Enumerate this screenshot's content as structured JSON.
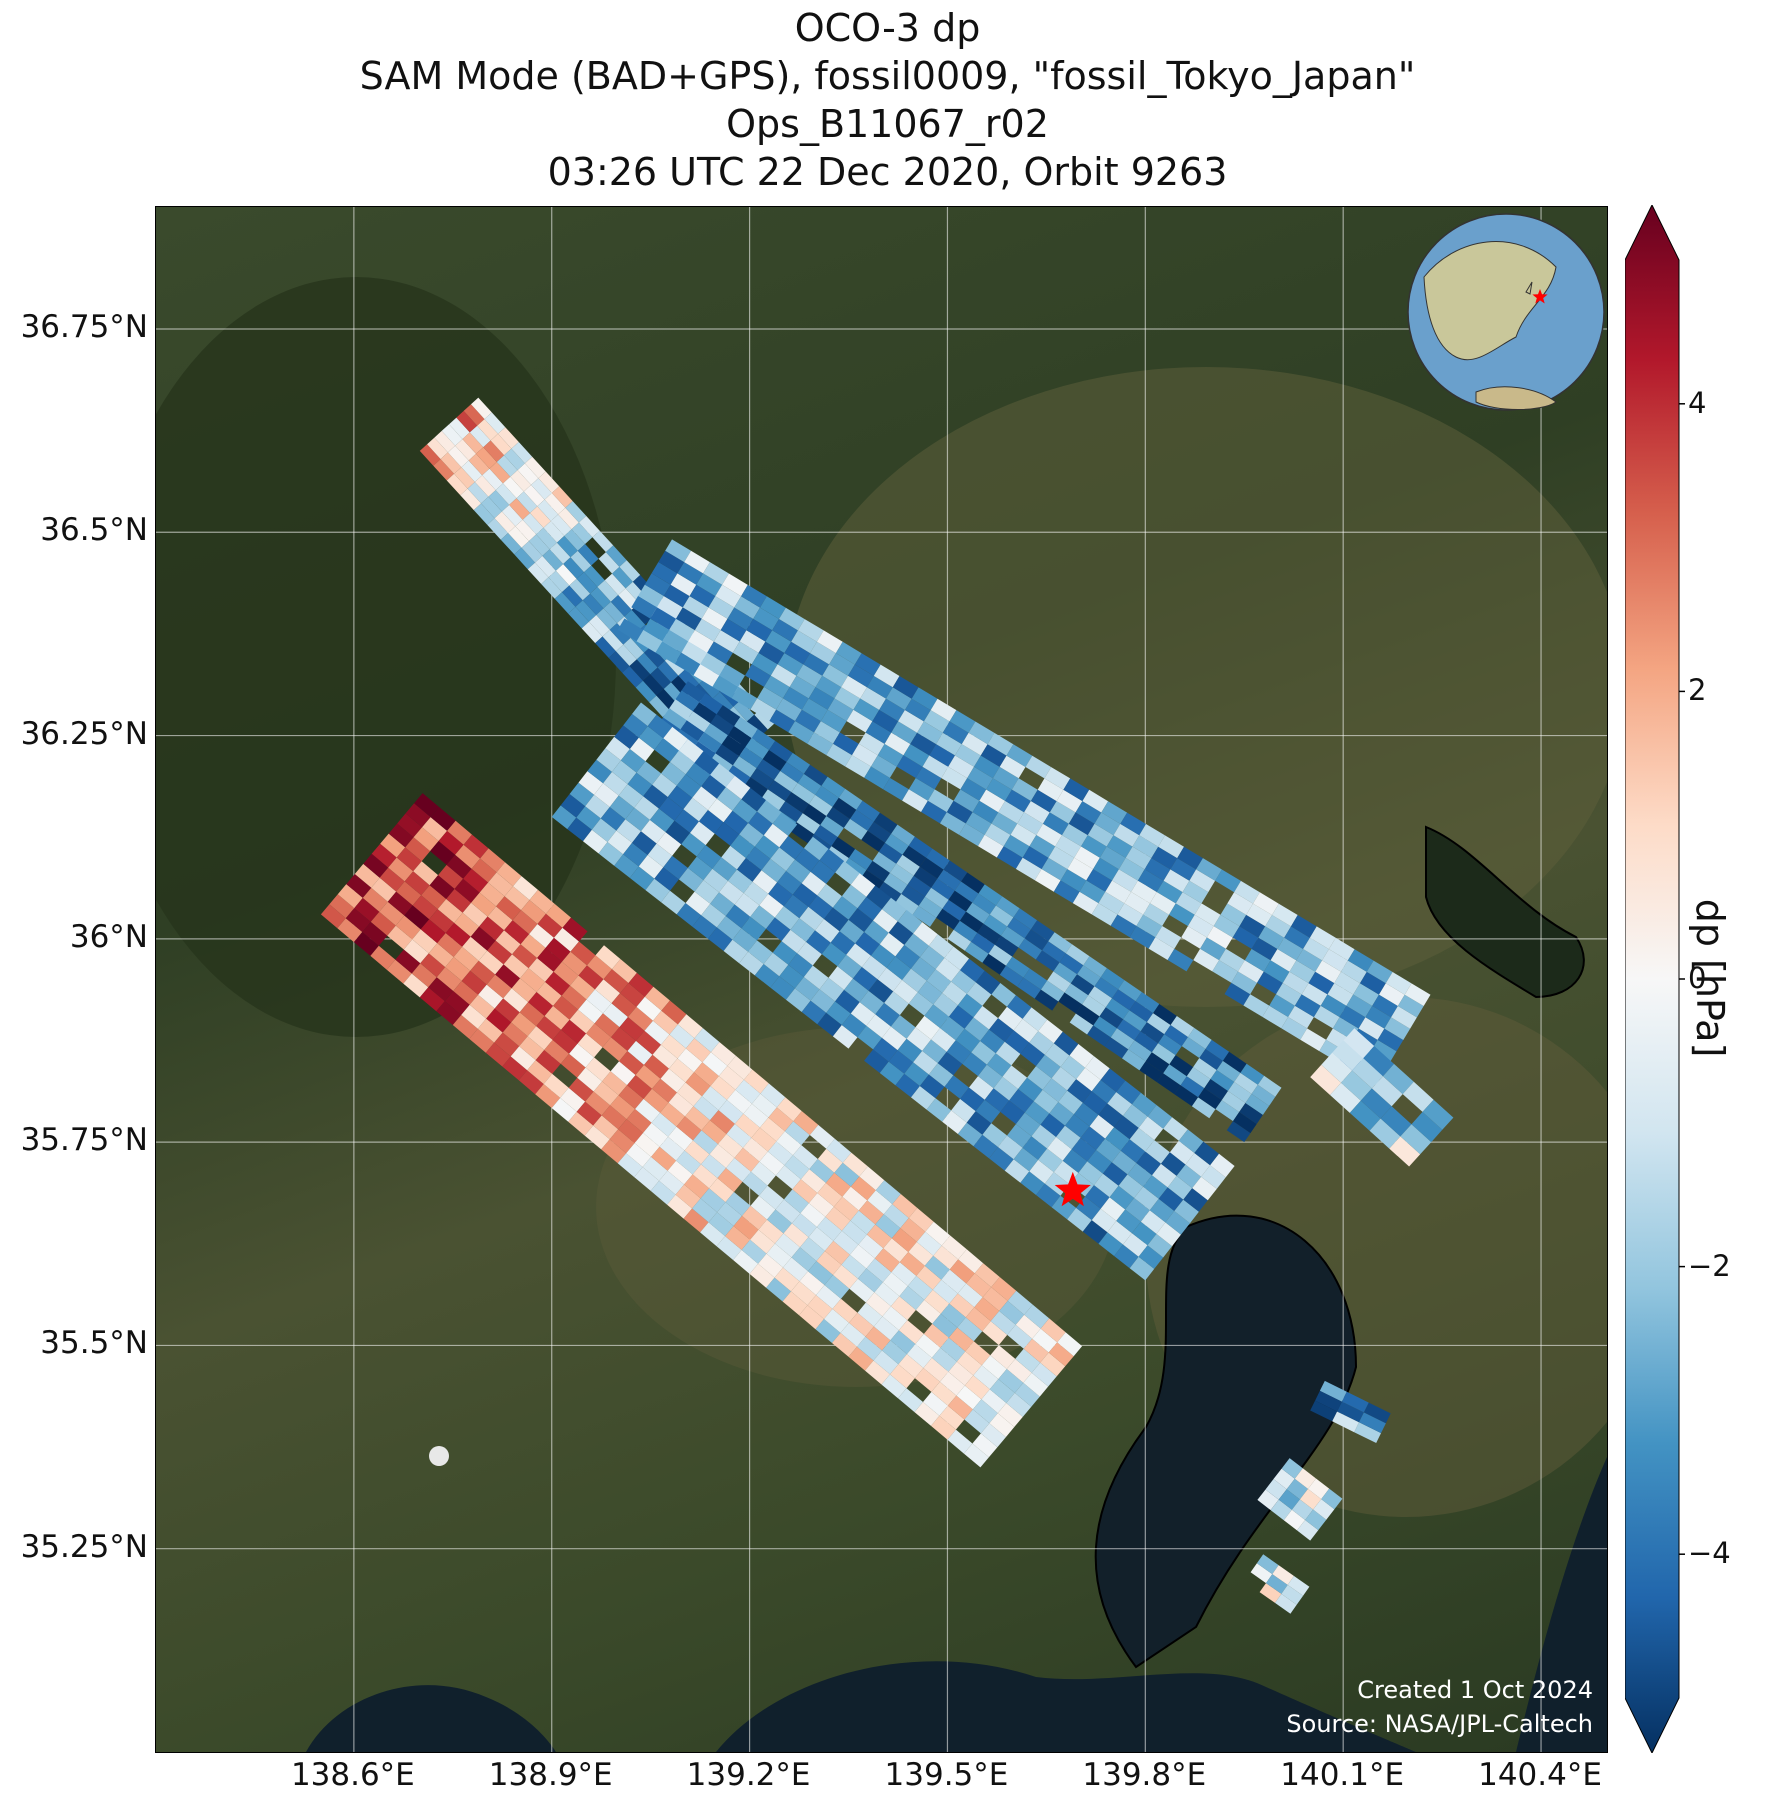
{
  "title": {
    "line1": "OCO-3 dp",
    "line2": "SAM Mode (BAD+GPS), fossil0009, \"fossil_Tokyo_Japan\"",
    "line3": "Ops_B11067_r02",
    "line4": "03:26 UTC 22 Dec 2020, Orbit 9263"
  },
  "map_extent": {
    "lon": [
      138.3,
      140.5
    ],
    "lat": [
      35.0,
      36.9
    ]
  },
  "axes": {
    "lon_ticks": [
      {
        "value": 138.6,
        "label": "138.6°E"
      },
      {
        "value": 138.9,
        "label": "138.9°E"
      },
      {
        "value": 139.2,
        "label": "139.2°E"
      },
      {
        "value": 139.5,
        "label": "139.5°E"
      },
      {
        "value": 139.8,
        "label": "139.8°E"
      },
      {
        "value": 140.1,
        "label": "140.1°E"
      },
      {
        "value": 140.4,
        "label": "140.4°E"
      }
    ],
    "lat_ticks": [
      {
        "value": 36.75,
        "label": "36.75°N"
      },
      {
        "value": 36.5,
        "label": "36.5°N"
      },
      {
        "value": 36.25,
        "label": "36.25°N"
      },
      {
        "value": 36.0,
        "label": "36°N"
      },
      {
        "value": 35.75,
        "label": "35.75°N"
      },
      {
        "value": 35.5,
        "label": "35.5°N"
      },
      {
        "value": 35.25,
        "label": "35.25°N"
      }
    ],
    "grid": true
  },
  "target": {
    "name": "fossil_Tokyo_Japan",
    "lon": 139.69,
    "lat": 35.69,
    "marker": "red-star"
  },
  "colorbar": {
    "label": "dp [hPa]",
    "range": [
      -5,
      5
    ],
    "extend": "both",
    "colormap": "RdBu_r",
    "ticks": [
      {
        "value": 4,
        "label": "4"
      },
      {
        "value": 2,
        "label": "2"
      },
      {
        "value": 0,
        "label": "0"
      },
      {
        "value": -2,
        "label": "−2"
      },
      {
        "value": -4,
        "label": "−4"
      }
    ]
  },
  "credit": {
    "created": "Created 1 Oct 2024",
    "source": "Source: NASA/JPL-Caltech"
  },
  "chart_data": {
    "type": "heatmap",
    "title": "OCO-3 dp",
    "colorbar_label": "dp [hPa]",
    "swaths": [
      {
        "start": [
          138.7,
          36.6
        ],
        "end": [
          139.15,
          36.2
        ],
        "width_lon": 0.12,
        "rows": 22,
        "cols": 8,
        "mean_dp": -3.0,
        "start_dp": 1.5
      },
      {
        "start": [
          139.05,
          36.25
        ],
        "end": [
          139.95,
          35.75
        ],
        "width_lon": 0.1,
        "rows": 34,
        "cols": 6,
        "mean_dp": -3.6,
        "start_dp": -3.6
      },
      {
        "start": [
          139.0,
          36.38
        ],
        "end": [
          140.15,
          35.82
        ],
        "width_lon": 0.16,
        "rows": 40,
        "cols": 8,
        "mean_dp": -2.2,
        "start_dp": -2.2
      },
      {
        "start": [
          138.55,
          36.03
        ],
        "end": [
          139.55,
          35.35
        ],
        "width_lon": 0.24,
        "rows": 40,
        "cols": 12,
        "mean_dp": 0.0,
        "start_dp": 3.5
      },
      {
        "start": [
          138.9,
          36.15
        ],
        "end": [
          139.8,
          35.58
        ],
        "width_lon": 0.22,
        "rows": 38,
        "cols": 10,
        "mean_dp": -2.4,
        "start_dp": -2.4
      },
      {
        "start": [
          140.05,
          35.83
        ],
        "end": [
          140.2,
          35.72
        ],
        "width_lon": 0.1,
        "rows": 5,
        "cols": 4,
        "mean_dp": -1.5,
        "start_dp": -1.5
      },
      {
        "start": [
          140.05,
          35.42
        ],
        "end": [
          140.15,
          35.38
        ],
        "width_lon": 0.05,
        "rows": 3,
        "cols": 3,
        "mean_dp": -3.0,
        "start_dp": -3.0
      },
      {
        "start": [
          139.97,
          35.31
        ],
        "end": [
          140.05,
          35.26
        ],
        "width_lon": 0.08,
        "rows": 4,
        "cols": 4,
        "mean_dp": -1.2,
        "start_dp": -1.2
      },
      {
        "start": [
          139.95,
          35.21
        ],
        "end": [
          140.02,
          35.17
        ],
        "width_lon": 0.05,
        "rows": 3,
        "cols": 3,
        "mean_dp": -0.5,
        "start_dp": -0.5
      }
    ]
  }
}
